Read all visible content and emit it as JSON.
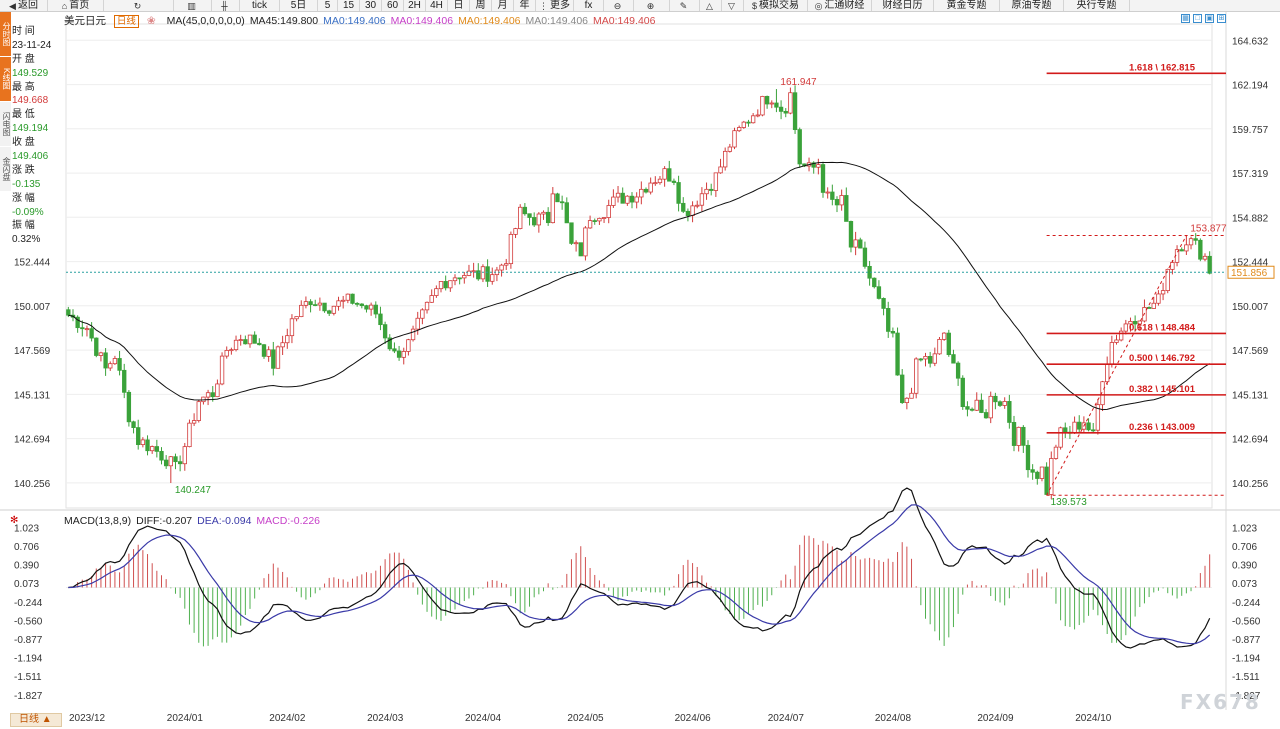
{
  "toolbar": [
    {
      "name": "back-button",
      "icon": "◀",
      "label": "返回",
      "w": 48
    },
    {
      "name": "home-button",
      "icon": "⌂",
      "label": "首页",
      "w": 56
    },
    {
      "name": "refresh-button",
      "icon": "↻",
      "label": "",
      "w": 70
    },
    {
      "name": "bar-chart-button",
      "icon": "▥",
      "label": "",
      "w": 38
    },
    {
      "name": "candle-chart-button",
      "icon": "╫",
      "label": "",
      "w": 28
    },
    {
      "name": "tick-button",
      "icon": "",
      "label": "tick",
      "w": 40
    },
    {
      "name": "period-5d",
      "icon": "",
      "label": "5日",
      "w": 38
    },
    {
      "name": "period-5m",
      "icon": "",
      "label": "5",
      "w": 20
    },
    {
      "name": "period-15m",
      "icon": "",
      "label": "15",
      "w": 22
    },
    {
      "name": "period-30m",
      "icon": "",
      "label": "30",
      "w": 22
    },
    {
      "name": "period-60m",
      "icon": "",
      "label": "60",
      "w": 22
    },
    {
      "name": "period-2h",
      "icon": "",
      "label": "2H",
      "w": 22
    },
    {
      "name": "period-4h",
      "icon": "",
      "label": "4H",
      "w": 22
    },
    {
      "name": "period-day",
      "icon": "",
      "label": "日",
      "w": 22
    },
    {
      "name": "period-week",
      "icon": "",
      "label": "周",
      "w": 22
    },
    {
      "name": "period-month",
      "icon": "",
      "label": "月",
      "w": 22
    },
    {
      "name": "period-year",
      "icon": "",
      "label": "年",
      "w": 22
    },
    {
      "name": "more-button",
      "icon": "⋮",
      "label": "更多",
      "w": 38
    },
    {
      "name": "formula-button",
      "icon": "",
      "label": "fx",
      "w": 30
    },
    {
      "name": "zoom-out-button",
      "icon": "⊖",
      "label": "",
      "w": 30
    },
    {
      "name": "zoom-in-button",
      "icon": "⊕",
      "label": "",
      "w": 36
    },
    {
      "name": "draw-line-button",
      "icon": "✎",
      "label": "",
      "w": 30
    },
    {
      "name": "triangle-up-button",
      "icon": "△",
      "label": "",
      "w": 22
    },
    {
      "name": "triangle-down-button",
      "icon": "▽",
      "label": "",
      "w": 22
    },
    {
      "name": "sim-trade-button",
      "icon": "$",
      "label": "模拟交易",
      "w": 64
    },
    {
      "name": "fx-news-button",
      "icon": "◎",
      "label": "汇通财经",
      "w": 64
    },
    {
      "name": "calendar-button",
      "icon": "",
      "label": "财经日历",
      "w": 62
    },
    {
      "name": "gold-topic-button",
      "icon": "",
      "label": "黄金专题",
      "w": 66
    },
    {
      "name": "oil-topic-button",
      "icon": "",
      "label": "原油专题",
      "w": 64
    },
    {
      "name": "cb-topic-button",
      "icon": "",
      "label": "央行专题",
      "w": 66
    }
  ],
  "leftstrip": [
    {
      "label": "分时图",
      "bg": "#e8731e",
      "color": "#fff"
    },
    {
      "label": "K线图",
      "bg": "#e8731e",
      "color": "#fff"
    },
    {
      "label": "闪电图",
      "bg": "#f2f2f2",
      "color": "#555"
    },
    {
      "label": "金闪盘",
      "bg": "#f2f2f2",
      "color": "#555"
    }
  ],
  "infopanel": [
    {
      "text": "时 间",
      "color": "#222"
    },
    {
      "text": "23-11-24",
      "color": "#222"
    },
    {
      "text": "开 盘",
      "color": "#222"
    },
    {
      "text": "149.529",
      "color": "#2a9a2a"
    },
    {
      "text": "最 高",
      "color": "#222"
    },
    {
      "text": "149.668",
      "color": "#d23a3a"
    },
    {
      "text": "最 低",
      "color": "#222"
    },
    {
      "text": "149.194",
      "color": "#2a9a2a"
    },
    {
      "text": "收 盘",
      "color": "#222"
    },
    {
      "text": "149.406",
      "color": "#2a9a2a"
    },
    {
      "text": "涨 跌",
      "color": "#222"
    },
    {
      "text": "-0.135",
      "color": "#2a9a2a"
    },
    {
      "text": "涨 幅",
      "color": "#222"
    },
    {
      "text": "-0.09%",
      "color": "#2a9a2a"
    },
    {
      "text": "振 幅",
      "color": "#222"
    },
    {
      "text": "0.32%",
      "color": "#222"
    }
  ],
  "legend": {
    "symbol": "美元日元",
    "period": "日线",
    "extra": "❀",
    "items": [
      {
        "text": "MA(45,0,0,0,0,0)",
        "color": "#222"
      },
      {
        "text": "MA45:149.800",
        "color": "#222"
      },
      {
        "text": "MA0:149.406",
        "color": "#3a6fc4"
      },
      {
        "text": "MA0:149.406",
        "color": "#c63fc8"
      },
      {
        "text": "MA0:149.406",
        "color": "#e08a1a"
      },
      {
        "text": "MA0:149.406",
        "color": "#888"
      },
      {
        "text": "MA0:149.406",
        "color": "#d44a4a"
      }
    ]
  },
  "macd_legend": {
    "icon": "✻",
    "items": [
      {
        "text": "MACD(13,8,9)",
        "color": "#222"
      },
      {
        "text": "DIFF:-0.207",
        "color": "#222"
      },
      {
        "text": "DEA:-0.094",
        "color": "#3a3aa8"
      },
      {
        "text": "MACD:-0.226",
        "color": "#c63fc8"
      }
    ]
  },
  "period_tab": "日线 ▲",
  "watermark": "FX678",
  "colors": {
    "up": "#d23a3a",
    "down": "#3aa23a",
    "ma": "#111",
    "fib": "#d21a1a",
    "dea": "#3a3aa8",
    "diff": "#111",
    "price": "#e08a1a",
    "grid": "#eeeeee"
  },
  "chart_data": {
    "type": "candlestick",
    "symbol": "美元日元",
    "period": "日线",
    "price_ticks": [
      "164.632",
      "162.194",
      "159.757",
      "157.319",
      "154.882",
      "152.444",
      "150.007",
      "147.569",
      "145.131",
      "142.694",
      "140.256"
    ],
    "macd_ticks": [
      "1.023",
      "0.706",
      "0.390",
      "0.073",
      "-0.244",
      "-0.560",
      "-0.877",
      "-1.194",
      "-1.511",
      "-1.827"
    ],
    "macd_ticks_right": [
      "1.023",
      "0.706",
      "0.390",
      "0.073",
      "-0.244",
      "-0.560",
      "-0.877",
      "-1.194",
      "-1.511",
      "-1.827"
    ],
    "x_labels": [
      {
        "label": "2023/12",
        "i": 4
      },
      {
        "label": "2024/01",
        "i": 25
      },
      {
        "label": "2024/02",
        "i": 47
      },
      {
        "label": "2024/03",
        "i": 68
      },
      {
        "label": "2024/04",
        "i": 89
      },
      {
        "label": "2024/05",
        "i": 111
      },
      {
        "label": "2024/06",
        "i": 134
      },
      {
        "label": "2024/07",
        "i": 154
      },
      {
        "label": "2024/08",
        "i": 177
      },
      {
        "label": "2024/09",
        "i": 199
      },
      {
        "label": "2024/10",
        "i": 220
      }
    ],
    "close_keypoints": [
      [
        0,
        149.5
      ],
      [
        4,
        148.8
      ],
      [
        8,
        146.5
      ],
      [
        10,
        147.3
      ],
      [
        13,
        144.0
      ],
      [
        15,
        142.6
      ],
      [
        18,
        142.2
      ],
      [
        21,
        141.6
      ],
      [
        23,
        141.0
      ],
      [
        25,
        142.3
      ],
      [
        28,
        144.8
      ],
      [
        31,
        145.2
      ],
      [
        34,
        147.6
      ],
      [
        37,
        148.3
      ],
      [
        41,
        148.0
      ],
      [
        44,
        146.8
      ],
      [
        48,
        149.2
      ],
      [
        52,
        150.4
      ],
      [
        56,
        150.0
      ],
      [
        61,
        150.3
      ],
      [
        66,
        149.6
      ],
      [
        70,
        147.3
      ],
      [
        73,
        147.9
      ],
      [
        76,
        149.4
      ],
      [
        80,
        151.3
      ],
      [
        84,
        151.8
      ],
      [
        88,
        151.7
      ],
      [
        92,
        151.9
      ],
      [
        94,
        152.7
      ],
      [
        97,
        155.1
      ],
      [
        100,
        154.8
      ],
      [
        103,
        154.8
      ],
      [
        104,
        156.6
      ],
      [
        106,
        155.5
      ],
      [
        108,
        153.3
      ],
      [
        110,
        153.0
      ],
      [
        112,
        155.0
      ],
      [
        115,
        155.3
      ],
      [
        118,
        155.9
      ],
      [
        122,
        156.2
      ],
      [
        125,
        156.9
      ],
      [
        128,
        157.3
      ],
      [
        130,
        157.1
      ],
      [
        132,
        155.1
      ],
      [
        134,
        155.6
      ],
      [
        136,
        156.2
      ],
      [
        139,
        157.1
      ],
      [
        142,
        158.9
      ],
      [
        145,
        160.0
      ],
      [
        148,
        160.9
      ],
      [
        151,
        161.8
      ],
      [
        153,
        161.0
      ],
      [
        155,
        161.6
      ],
      [
        157,
        158.0
      ],
      [
        159,
        157.3
      ],
      [
        161,
        157.9
      ],
      [
        163,
        155.7
      ],
      [
        166,
        155.5
      ],
      [
        168,
        153.3
      ],
      [
        171,
        152.3
      ],
      [
        174,
        150.0
      ],
      [
        177,
        147.8
      ],
      [
        179,
        144.2
      ],
      [
        181,
        145.8
      ],
      [
        183,
        147.0
      ],
      [
        186,
        147.0
      ],
      [
        188,
        148.5
      ],
      [
        190,
        146.3
      ],
      [
        193,
        144.5
      ],
      [
        196,
        143.9
      ],
      [
        199,
        145.2
      ],
      [
        201,
        144.7
      ],
      [
        203,
        143.0
      ],
      [
        205,
        142.3
      ],
      [
        207,
        141.0
      ],
      [
        209,
        140.9
      ],
      [
        210,
        140.0
      ],
      [
        212,
        142.5
      ],
      [
        215,
        143.1
      ],
      [
        218,
        143.7
      ],
      [
        220,
        142.8
      ],
      [
        222,
        146.2
      ],
      [
        224,
        148.0
      ],
      [
        226,
        148.7
      ],
      [
        228,
        149.3
      ],
      [
        231,
        149.7
      ],
      [
        234,
        150.3
      ],
      [
        236,
        152.1
      ],
      [
        238,
        153.2
      ],
      [
        240,
        153.7
      ],
      [
        242,
        153.3
      ],
      [
        244,
        152.7
      ],
      [
        245,
        152.0
      ]
    ],
    "candles_total": 246,
    "extremes": [
      {
        "i": 22,
        "low": 140.247,
        "label": "140.247"
      },
      {
        "i": 152,
        "high": 161.947,
        "label": "161.947"
      },
      {
        "i": 210,
        "low": 139.573,
        "label": "139.573"
      },
      {
        "i": 240,
        "high": 153.877,
        "label": "153.877"
      }
    ],
    "ma45_label": "MA45:149.800",
    "current_price": "151.856",
    "current_price_value": 151.856,
    "fib_levels": [
      {
        "label": "1.618 \\ 162.815",
        "value": 162.815
      },
      {
        "label": "0.618 \\ 148.484",
        "value": 148.484
      },
      {
        "label": "0.500 \\ 146.792",
        "value": 146.792
      },
      {
        "label": "0.382 \\ 145.101",
        "value": 145.101
      },
      {
        "label": "0.236 \\ 143.009",
        "value": 143.009
      }
    ],
    "fib_low": 139.573,
    "fib_high": 153.877,
    "price_range": [
      139.2,
      165.2
    ],
    "macd_range": [
      -1.95,
      1.15
    ],
    "macd_params": [
      13,
      8,
      9
    ]
  }
}
